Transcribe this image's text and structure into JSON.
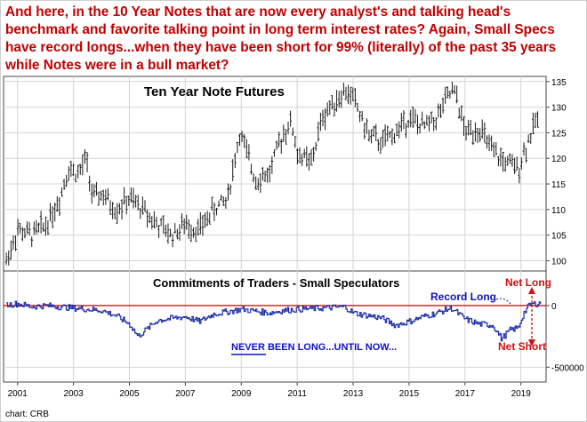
{
  "headline": "And here, in the 10 Year Notes that are now every analyst's and talking head's benchmark and favorite talking point in long term interest rates? Again, Small Specs have record longs...when they have been short for 99% (literally) of the past 35 years while Notes were in a bull market?",
  "source": "chart: CRB",
  "colors": {
    "text_red": "#c00000",
    "bars": "#1a1a1a",
    "cot_line": "#1a2fa8",
    "zero_line": "#dd1111",
    "annotation_blue": "#1010c0",
    "grid": "#d4d4d4"
  },
  "chart_data": [
    {
      "type": "ohlc",
      "title": "Ten Year Note Futures",
      "x_ticks": [
        "2001",
        "2003",
        "2005",
        "2007",
        "2009",
        "2011",
        "2013",
        "2015",
        "2017",
        "2019"
      ],
      "xlim": [
        2000.5,
        2019.9
      ],
      "y_ticks": [
        100,
        105,
        110,
        115,
        120,
        125,
        130,
        135
      ],
      "ylim": [
        98,
        136
      ],
      "grid": true,
      "series": [
        {
          "x": [
            2000.6,
            2001.0,
            2001.5,
            2002.0,
            2002.5,
            2002.8,
            2003.2,
            2003.45,
            2003.7,
            2004.0,
            2004.5,
            2005.0,
            2005.5,
            2006.0,
            2006.5,
            2007.0,
            2007.5,
            2008.0,
            2008.5,
            2008.95,
            2009.5,
            2010.0,
            2010.5,
            2010.8,
            2011.0,
            2011.5,
            2011.9,
            2012.3,
            2012.7,
            2013.0,
            2013.5,
            2014.0,
            2014.5,
            2015.0,
            2015.5,
            2016.0,
            2016.5,
            2016.7,
            2017.0,
            2017.5,
            2018.0,
            2018.5,
            2018.9,
            2019.3,
            2019.6
          ],
          "y": [
            100,
            106,
            105,
            107,
            112,
            118,
            117,
            120,
            112,
            113,
            110,
            112,
            110,
            107,
            105,
            107,
            106,
            110,
            112,
            125,
            116,
            117,
            125,
            127,
            121,
            119,
            128,
            131,
            133,
            132,
            125,
            123,
            125,
            128,
            126,
            128,
            133,
            132,
            125,
            126,
            121,
            119,
            118,
            124,
            128
          ]
        }
      ]
    },
    {
      "type": "line",
      "title": "Commitments of Traders - Small Speculators",
      "y_ticks": [
        0,
        -500000
      ],
      "ylim": [
        -620000,
        280000
      ],
      "series": [
        {
          "x": [
            2000.6,
            2001.0,
            2001.5,
            2002.0,
            2003.0,
            2004.0,
            2004.5,
            2005.0,
            2005.3,
            2006.0,
            2007.0,
            2007.5,
            2008.0,
            2008.5,
            2009.0,
            2010.0,
            2010.5,
            2011.0,
            2012.0,
            2012.7,
            2013.0,
            2014.0,
            2014.5,
            2015.0,
            2015.5,
            2016.0,
            2016.5,
            2017.0,
            2017.5,
            2018.0,
            2018.3,
            2018.6,
            2018.9,
            2019.1,
            2019.3,
            2019.5,
            2019.7
          ],
          "y": [
            5000,
            15000,
            -10000,
            0,
            -20000,
            -40000,
            -80000,
            -150000,
            -250000,
            -120000,
            -90000,
            -130000,
            -70000,
            -50000,
            -30000,
            -60000,
            -40000,
            -30000,
            -20000,
            -10000,
            -60000,
            -100000,
            -160000,
            -130000,
            -90000,
            -60000,
            -20000,
            -110000,
            -150000,
            -160000,
            -270000,
            -200000,
            -180000,
            -60000,
            5000,
            15000,
            20000
          ]
        }
      ],
      "annotations": [
        "Record Long",
        "Net Long",
        "Net Short",
        "NEVER BEEN LONG...UNTIL NOW..."
      ]
    }
  ]
}
